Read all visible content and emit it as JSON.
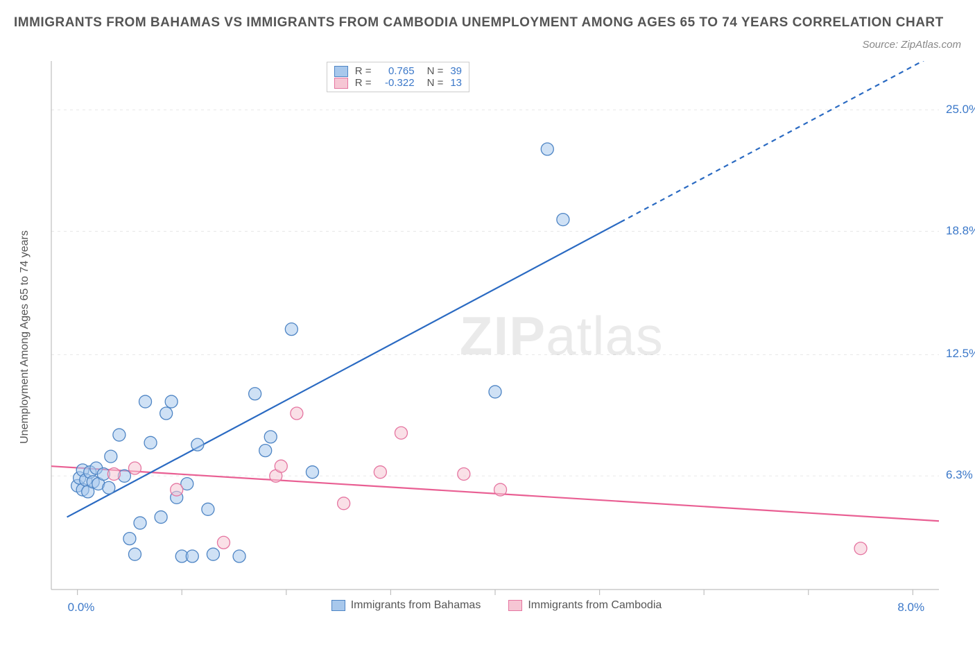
{
  "title": "IMMIGRANTS FROM BAHAMAS VS IMMIGRANTS FROM CAMBODIA UNEMPLOYMENT AMONG AGES 65 TO 74 YEARS CORRELATION CHART",
  "source": "Source: ZipAtlas.com",
  "watermark_bold": "ZIP",
  "watermark_light": "atlas",
  "ylabel": "Unemployment Among Ages 65 to 74 years",
  "colors": {
    "blue_fill": "#a8c8ec",
    "blue_stroke": "#4d84c4",
    "blue_line": "#2a6ac2",
    "pink_fill": "#f6c6d4",
    "pink_stroke": "#e574a0",
    "pink_line": "#e95f93",
    "grid": "#e8e8e8",
    "axis": "#bfbfbf",
    "tick_text_blue": "#3b78c9",
    "text": "#555555"
  },
  "plot": {
    "inner_x": 28,
    "inner_y": 0,
    "inner_w": 1280,
    "inner_h": 762,
    "xlim": [
      -0.25,
      8.25
    ],
    "ylim": [
      0.5,
      27.5
    ],
    "x_ticks": [
      0,
      1,
      2,
      3,
      4,
      5,
      6,
      7,
      8
    ],
    "y_grid": [
      6.3,
      12.5,
      18.8,
      25.0
    ],
    "x_left_label": "0.0%",
    "x_right_label": "8.0%",
    "y_labels": [
      "6.3%",
      "12.5%",
      "18.8%",
      "25.0%"
    ]
  },
  "legend_top": {
    "rows": [
      {
        "color": "blue",
        "r_label": "R =",
        "r": "0.765",
        "n_label": "N =",
        "n": "39"
      },
      {
        "color": "pink",
        "r_label": "R =",
        "r": "-0.322",
        "n_label": "N =",
        "n": "13"
      }
    ]
  },
  "bottom_legend": [
    {
      "color": "blue",
      "label": "Immigrants from Bahamas"
    },
    {
      "color": "pink",
      "label": "Immigrants from Cambodia"
    }
  ],
  "marker_radius": 9,
  "marker_opacity": 0.55,
  "line_width": 2.2,
  "series": {
    "blue": {
      "trend": {
        "x1": -0.1,
        "y1": 4.2,
        "x2": 8.2,
        "y2": 27.8,
        "solid_until_x": 5.2
      },
      "points": [
        [
          0.0,
          5.8
        ],
        [
          0.02,
          6.2
        ],
        [
          0.05,
          5.6
        ],
        [
          0.05,
          6.6
        ],
        [
          0.08,
          6.1
        ],
        [
          0.1,
          5.5
        ],
        [
          0.12,
          6.5
        ],
        [
          0.15,
          6.0
        ],
        [
          0.18,
          6.7
        ],
        [
          0.2,
          5.9
        ],
        [
          0.25,
          6.4
        ],
        [
          0.3,
          5.7
        ],
        [
          0.32,
          7.3
        ],
        [
          0.4,
          8.4
        ],
        [
          0.45,
          6.3
        ],
        [
          0.5,
          3.1
        ],
        [
          0.55,
          2.3
        ],
        [
          0.6,
          3.9
        ],
        [
          0.65,
          10.1
        ],
        [
          0.7,
          8.0
        ],
        [
          0.8,
          4.2
        ],
        [
          0.85,
          9.5
        ],
        [
          0.9,
          10.1
        ],
        [
          0.95,
          5.2
        ],
        [
          1.0,
          2.2
        ],
        [
          1.05,
          5.9
        ],
        [
          1.1,
          2.2
        ],
        [
          1.15,
          7.9
        ],
        [
          1.25,
          4.6
        ],
        [
          1.3,
          2.3
        ],
        [
          1.55,
          2.2
        ],
        [
          1.7,
          10.5
        ],
        [
          1.8,
          7.6
        ],
        [
          1.85,
          8.3
        ],
        [
          2.05,
          13.8
        ],
        [
          2.25,
          6.5
        ],
        [
          4.0,
          10.6
        ],
        [
          4.5,
          23.0
        ],
        [
          4.65,
          19.4
        ]
      ]
    },
    "pink": {
      "trend": {
        "x1": -0.25,
        "y1": 6.8,
        "x2": 8.25,
        "y2": 4.0
      },
      "points": [
        [
          0.35,
          6.4
        ],
        [
          0.55,
          6.7
        ],
        [
          0.95,
          5.6
        ],
        [
          1.4,
          2.9
        ],
        [
          1.9,
          6.3
        ],
        [
          1.95,
          6.8
        ],
        [
          2.1,
          9.5
        ],
        [
          2.55,
          4.9
        ],
        [
          2.9,
          6.5
        ],
        [
          3.1,
          8.5
        ],
        [
          3.7,
          6.4
        ],
        [
          4.05,
          5.6
        ],
        [
          7.5,
          2.6
        ]
      ]
    }
  }
}
